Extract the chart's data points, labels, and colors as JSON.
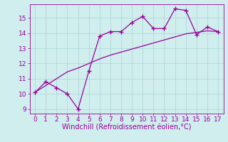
{
  "line1_x": [
    0,
    1,
    2,
    3,
    4,
    5,
    6,
    7,
    8,
    9,
    10,
    11,
    12,
    13,
    14,
    15,
    16,
    17
  ],
  "line1_y": [
    10.1,
    10.8,
    10.4,
    10.0,
    9.0,
    11.5,
    13.8,
    14.1,
    14.1,
    14.7,
    15.1,
    14.3,
    14.3,
    15.6,
    15.5,
    13.9,
    14.4,
    14.1
  ],
  "line2_x": [
    0,
    1,
    2,
    3,
    4,
    5,
    6,
    7,
    8,
    9,
    10,
    11,
    12,
    13,
    14,
    15,
    16,
    17
  ],
  "line2_y": [
    10.1,
    10.55,
    11.0,
    11.45,
    11.7,
    12.0,
    12.3,
    12.55,
    12.75,
    12.95,
    13.15,
    13.35,
    13.55,
    13.75,
    13.95,
    14.05,
    14.15,
    14.1
  ],
  "line_color": "#990099",
  "marker": "+",
  "markersize": 4,
  "markeredgewidth": 1.0,
  "linewidth": 0.9,
  "bg_color": "#d0eeee",
  "grid_color": "#b0d8d8",
  "xlabel": "Windchill (Refroidissement éolien,°C)",
  "xlabel_color": "#990099",
  "xlabel_fontsize": 7,
  "tick_color": "#990099",
  "tick_fontsize": 6.5,
  "ylim": [
    8.7,
    15.9
  ],
  "xlim": [
    -0.5,
    17.5
  ],
  "yticks": [
    9,
    10,
    11,
    12,
    13,
    14,
    15
  ],
  "xticks": [
    0,
    1,
    2,
    3,
    4,
    5,
    6,
    7,
    8,
    9,
    10,
    11,
    12,
    13,
    14,
    15,
    16,
    17
  ]
}
